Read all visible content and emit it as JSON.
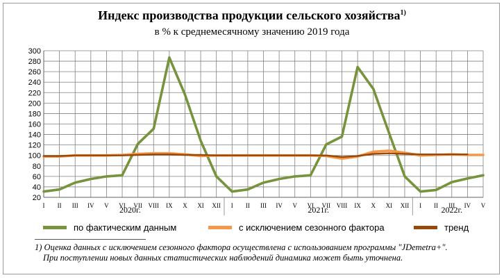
{
  "header": {
    "title": "Индекс производства продукции сельского хозяйства",
    "title_sup": "1)",
    "subtitle": "в % к среднемесячному значению 2019 года"
  },
  "colors": {
    "actual": "#77933c",
    "seasonal": "#f79646",
    "trend": "#984807",
    "grid": "#808080"
  },
  "chart_data": {
    "type": "line",
    "ylim": [
      20,
      300
    ],
    "yticks": [
      20,
      40,
      60,
      80,
      100,
      120,
      140,
      160,
      180,
      200,
      220,
      240,
      260,
      280,
      300
    ],
    "categories": [
      "I",
      "II",
      "III",
      "IV",
      "V",
      "VI",
      "VII",
      "VIII",
      "IX",
      "X",
      "XI",
      "XII",
      "I",
      "II",
      "III",
      "IV",
      "V",
      "VI",
      "VII",
      "VIII",
      "IX",
      "X",
      "XI",
      "XII",
      "I",
      "II",
      "III",
      "IV",
      "V"
    ],
    "year_labels": [
      {
        "label": "2020г.",
        "start_index": 0,
        "end_index": 11
      },
      {
        "label": "2021г.",
        "start_index": 12,
        "end_index": 23
      },
      {
        "label": "2022г.",
        "start_index": 24,
        "end_index": 28
      }
    ],
    "series": [
      {
        "name": "по фактическим данным",
        "color": "#77933c",
        "values": [
          31,
          35,
          48,
          55,
          60,
          62,
          122,
          151,
          287,
          216,
          128,
          60,
          31,
          35,
          48,
          55,
          60,
          62,
          121,
          136,
          269,
          227,
          143,
          60,
          31,
          34,
          49,
          56,
          62
        ]
      },
      {
        "name": "с исключением сезонного фактора",
        "color": "#f79646",
        "values": [
          98,
          98,
          100,
          100,
          100,
          101,
          103,
          104,
          104,
          102,
          99,
          100,
          100,
          100,
          100,
          100,
          100,
          100,
          99,
          94,
          98,
          107,
          109,
          105,
          100,
          101,
          102,
          101,
          101
        ]
      },
      {
        "name": "тренд",
        "color": "#984807",
        "values": [
          99,
          99,
          100,
          100,
          100,
          100,
          101,
          102,
          102,
          101,
          101,
          100,
          100,
          100,
          100,
          100,
          100,
          100,
          100,
          97,
          99,
          103,
          104,
          103,
          102,
          102,
          102,
          102,
          null
        ]
      }
    ]
  },
  "legend": {
    "actual": "по фактическим  данным",
    "seasonal": "с исключением  сезонного фактора",
    "trend": "тренд"
  },
  "footnote": {
    "line1": "1) Оценка данных с исключением сезонного фактора осуществлена с использованием программы \"JDemetra+\".",
    "line2": "При поступлении новых данных статистических наблюдений динамика может быть уточнена."
  }
}
